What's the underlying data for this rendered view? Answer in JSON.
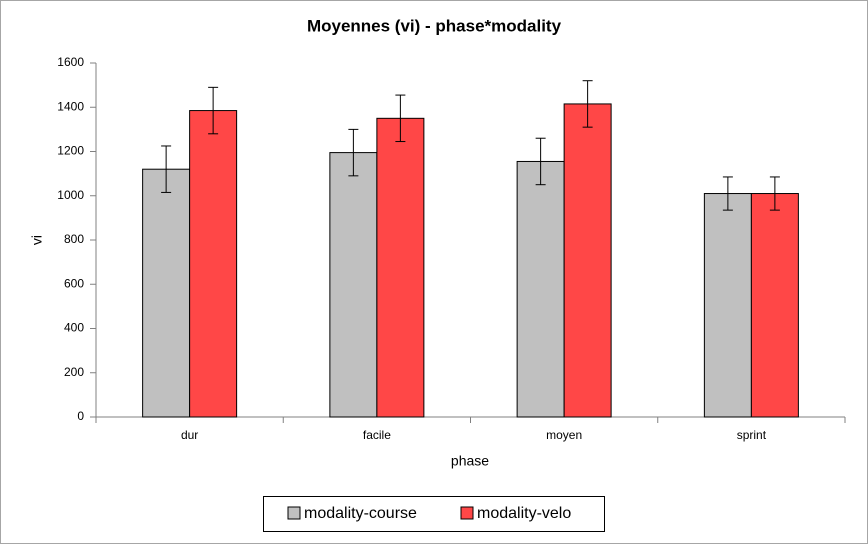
{
  "chart_data": {
    "type": "bar",
    "title": "Moyennes (vi) - phase*modality",
    "x_label": "phase",
    "y_label": "vi",
    "categories": [
      "dur",
      "facile",
      "moyen",
      "sprint"
    ],
    "series": [
      {
        "name": "modality-course",
        "color": "#c0c0c0",
        "values": [
          1120,
          1195,
          1155,
          1010
        ],
        "errors": [
          105,
          105,
          105,
          75
        ]
      },
      {
        "name": "modality-velo",
        "color": "#ff4747",
        "values": [
          1385,
          1350,
          1415,
          1010
        ],
        "errors": [
          105,
          105,
          105,
          75
        ]
      }
    ],
    "ylim": [
      0,
      1600
    ],
    "yticks": [
      0,
      200,
      400,
      600,
      800,
      1000,
      1200,
      1400,
      1600
    ],
    "grid": false,
    "legend": "bottom"
  }
}
